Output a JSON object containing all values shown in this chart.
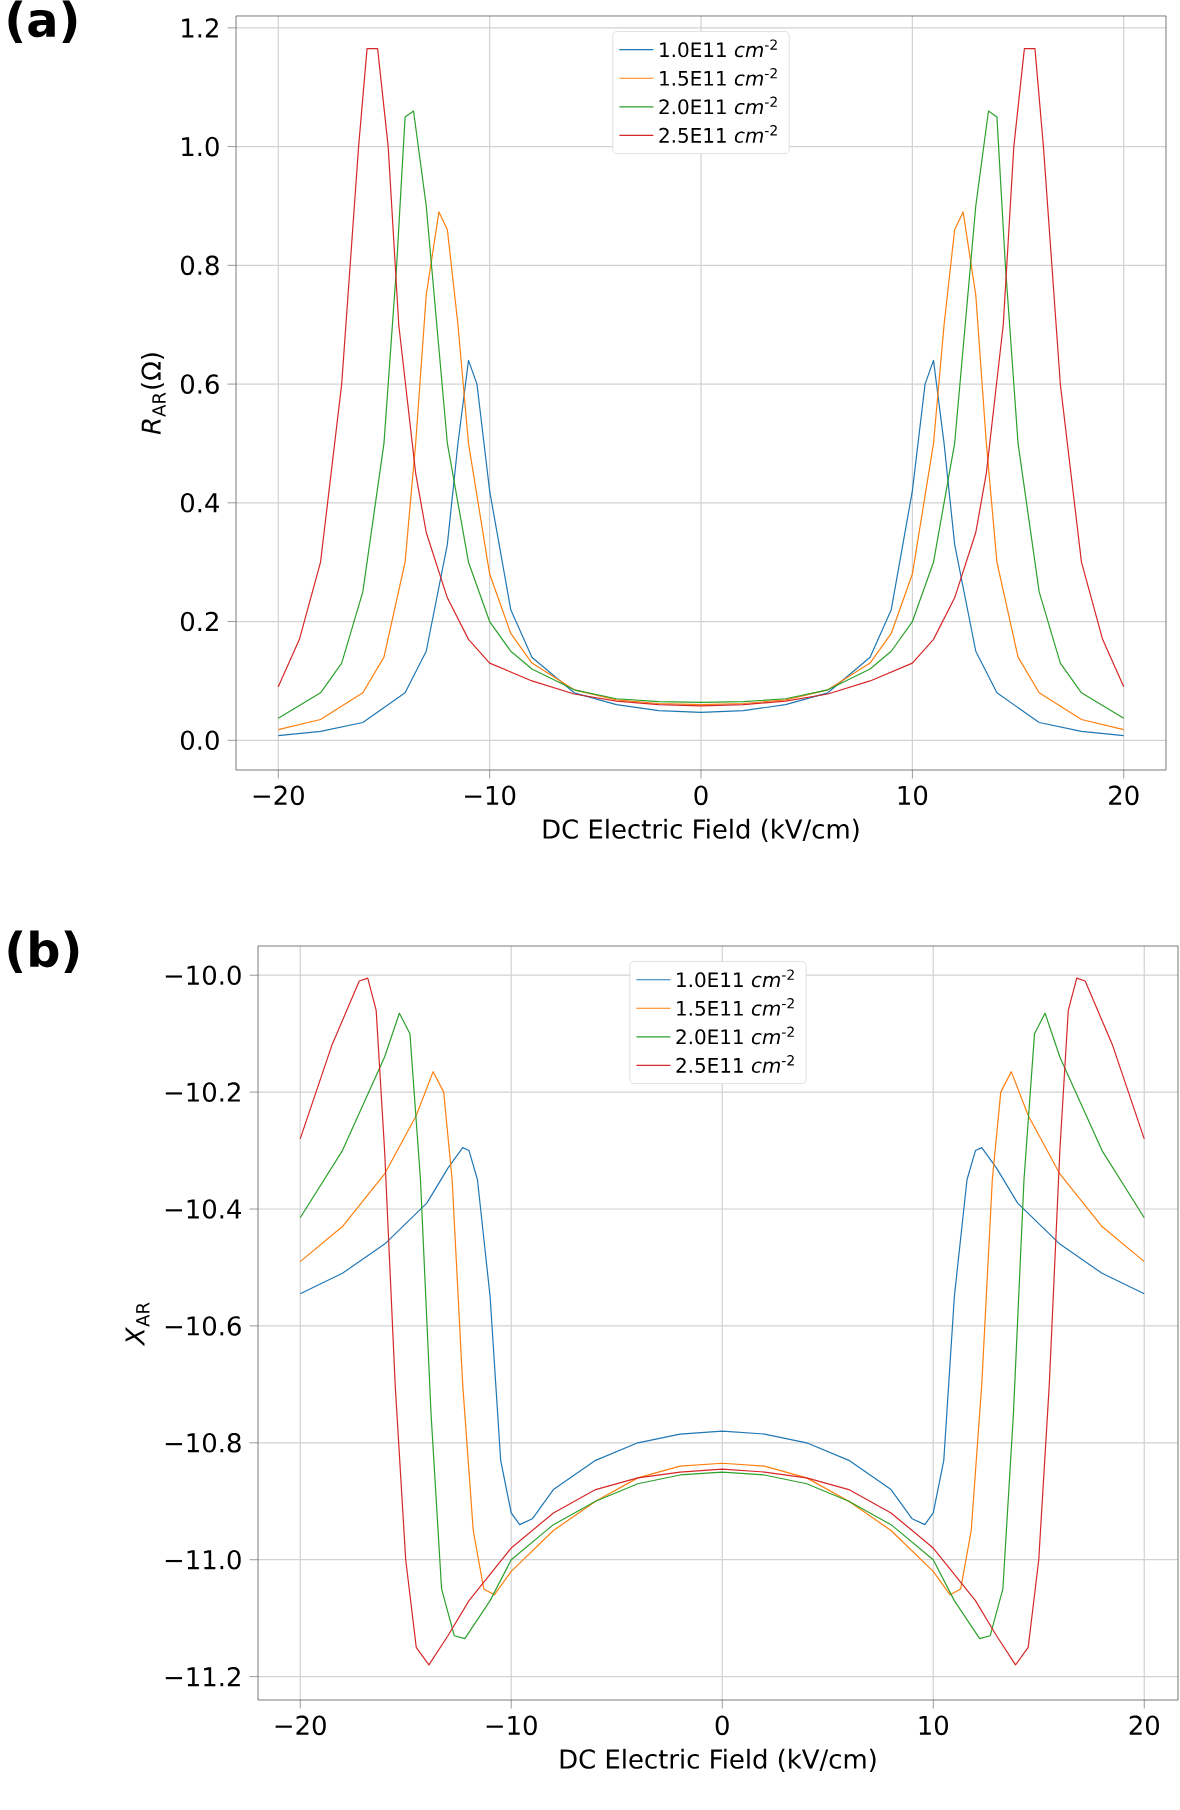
{
  "chart_data": [
    {
      "type": "line",
      "title": "**(a)**",
      "xlabel": "DC Electric Field (kV/cm)",
      "ylabel": "*R*$_{AR}$(Ω)",
      "grid": true,
      "legend": "top",
      "xlim": [
        -22,
        22
      ],
      "ylim": [
        -0.05,
        1.22
      ],
      "xticks": [
        {
          "value": -20,
          "label": "−20"
        },
        {
          "value": -10,
          "label": "−10"
        },
        {
          "value": 0,
          "label": "0"
        },
        {
          "value": 10,
          "label": "10"
        },
        {
          "value": 20,
          "label": "20"
        }
      ],
      "yticks": [
        {
          "value": 0,
          "label": "0.0"
        },
        {
          "value": 0.2,
          "label": "0.2"
        },
        {
          "value": 0.4,
          "label": "0.4"
        },
        {
          "value": 0.6,
          "label": "0.6"
        },
        {
          "value": 0.8,
          "label": "0.8"
        },
        {
          "value": 1.0,
          "label": "1.0"
        },
        {
          "value": 1.2,
          "label": "1.2"
        }
      ],
      "series": [
        {
          "name": "1.0E11 *cm*$^{-2}$",
          "color": "#1f77b4",
          "x": [
            -20,
            -18,
            -16,
            -14,
            -13,
            -12,
            -11.5,
            -11,
            -10.6,
            -10,
            -9,
            -8,
            -6,
            -4,
            -2,
            0,
            2,
            4,
            6,
            8,
            9,
            10,
            10.6,
            11,
            11.5,
            12,
            13,
            14,
            16,
            18,
            20
          ],
          "values": [
            0.008,
            0.015,
            0.03,
            0.08,
            0.15,
            0.33,
            0.5,
            0.64,
            0.6,
            0.42,
            0.22,
            0.14,
            0.08,
            0.06,
            0.05,
            0.047,
            0.05,
            0.06,
            0.08,
            0.14,
            0.22,
            0.42,
            0.6,
            0.64,
            0.5,
            0.33,
            0.15,
            0.08,
            0.03,
            0.015,
            0.008
          ]
        },
        {
          "name": "1.5E11 *cm*$^{-2}$",
          "color": "#ff7f0e",
          "x": [
            -20,
            -18,
            -16,
            -15,
            -14,
            -13.5,
            -13,
            -12.4,
            -12,
            -11.5,
            -11,
            -10,
            -9,
            -8,
            -6,
            -4,
            -2,
            0,
            2,
            4,
            6,
            8,
            9,
            10,
            11,
            11.5,
            12,
            12.4,
            13,
            13.5,
            14,
            15,
            16,
            18,
            20
          ],
          "values": [
            0.018,
            0.035,
            0.08,
            0.14,
            0.3,
            0.5,
            0.75,
            0.89,
            0.86,
            0.7,
            0.5,
            0.28,
            0.18,
            0.13,
            0.085,
            0.068,
            0.062,
            0.06,
            0.062,
            0.068,
            0.085,
            0.13,
            0.18,
            0.28,
            0.5,
            0.7,
            0.86,
            0.89,
            0.75,
            0.5,
            0.3,
            0.14,
            0.08,
            0.035,
            0.018
          ]
        },
        {
          "name": "2.0E11 *cm*$^{-2}$",
          "color": "#2ca02c",
          "x": [
            -20,
            -18,
            -17,
            -16,
            -15,
            -14.4,
            -14,
            -13.6,
            -13,
            -12.5,
            -12,
            -11,
            -10,
            -9,
            -8,
            -6,
            -4,
            -2,
            0,
            2,
            4,
            6,
            8,
            9,
            10,
            11,
            12,
            12.5,
            13,
            13.6,
            14,
            14.4,
            15,
            16,
            17,
            18,
            20
          ],
          "values": [
            0.037,
            0.08,
            0.13,
            0.25,
            0.5,
            0.8,
            1.05,
            1.06,
            0.9,
            0.7,
            0.5,
            0.3,
            0.2,
            0.15,
            0.12,
            0.085,
            0.07,
            0.065,
            0.064,
            0.065,
            0.07,
            0.085,
            0.12,
            0.15,
            0.2,
            0.3,
            0.5,
            0.7,
            0.9,
            1.06,
            1.05,
            0.8,
            0.5,
            0.25,
            0.13,
            0.08,
            0.037
          ]
        },
        {
          "name": "2.5E11 *cm*$^{-2}$",
          "color": "#d62728",
          "x": [
            -20,
            -19,
            -18,
            -17,
            -16.2,
            -15.8,
            -15.3,
            -14.8,
            -14.3,
            -13.5,
            -13,
            -12,
            -11,
            -10,
            -8,
            -6,
            -4,
            -2,
            0,
            2,
            4,
            6,
            8,
            10,
            11,
            12,
            13,
            13.5,
            14.3,
            14.8,
            15.3,
            15.8,
            16.2,
            17,
            18,
            19,
            20
          ],
          "values": [
            0.09,
            0.17,
            0.3,
            0.6,
            1.0,
            1.165,
            1.165,
            1.0,
            0.7,
            0.45,
            0.35,
            0.24,
            0.17,
            0.13,
            0.1,
            0.078,
            0.066,
            0.06,
            0.058,
            0.06,
            0.066,
            0.078,
            0.1,
            0.13,
            0.17,
            0.24,
            0.35,
            0.45,
            0.7,
            1.0,
            1.165,
            1.165,
            1.0,
            0.6,
            0.3,
            0.17,
            0.09
          ]
        }
      ]
    },
    {
      "type": "line",
      "title": "**(b)**",
      "xlabel": "DC Electric Field (kV/cm)",
      "ylabel": "*X*$_{AR}$",
      "grid": true,
      "legend": "top",
      "xlim": [
        -22,
        21.6
      ],
      "ylim": [
        -11.24,
        -9.95
      ],
      "xticks": [
        {
          "value": -20,
          "label": "−20"
        },
        {
          "value": -10,
          "label": "−10"
        },
        {
          "value": 0,
          "label": "0"
        },
        {
          "value": 10,
          "label": "10"
        },
        {
          "value": 20,
          "label": "20"
        }
      ],
      "yticks": [
        {
          "value": -11.2,
          "label": "−11.2"
        },
        {
          "value": -11.0,
          "label": "−11.0"
        },
        {
          "value": -10.8,
          "label": "−10.8"
        },
        {
          "value": -10.6,
          "label": "−10.6"
        },
        {
          "value": -10.4,
          "label": "−10.4"
        },
        {
          "value": -10.2,
          "label": "−10.2"
        },
        {
          "value": -10.0,
          "label": "−10.0"
        }
      ],
      "series": [
        {
          "name": "1.0E11 *cm*$^{-2}$",
          "color": "#1f77b4",
          "x": [
            -20,
            -18,
            -16,
            -14,
            -13,
            -12.3,
            -12,
            -11.6,
            -11,
            -10.5,
            -10,
            -9.6,
            -9,
            -8,
            -6,
            -4,
            -2,
            0,
            2,
            4,
            6,
            8,
            9,
            9.6,
            10,
            10.5,
            11,
            11.6,
            12,
            12.3,
            13,
            14,
            16,
            18,
            20
          ],
          "values": [
            -10.545,
            -10.51,
            -10.46,
            -10.39,
            -10.33,
            -10.295,
            -10.3,
            -10.35,
            -10.55,
            -10.83,
            -10.92,
            -10.94,
            -10.93,
            -10.88,
            -10.83,
            -10.8,
            -10.785,
            -10.78,
            -10.785,
            -10.8,
            -10.83,
            -10.88,
            -10.93,
            -10.94,
            -10.92,
            -10.83,
            -10.55,
            -10.35,
            -10.3,
            -10.295,
            -10.33,
            -10.39,
            -10.46,
            -10.51,
            -10.545
          ]
        },
        {
          "name": "1.5E11 *cm*$^{-2}$",
          "color": "#ff7f0e",
          "x": [
            -20,
            -18,
            -16,
            -14.5,
            -13.7,
            -13.2,
            -12.8,
            -12.3,
            -11.8,
            -11.3,
            -10.8,
            -10,
            -8,
            -6,
            -4,
            -2,
            0,
            2,
            4,
            6,
            8,
            10,
            10.8,
            11.3,
            11.8,
            12.3,
            12.8,
            13.2,
            13.7,
            14.5,
            16,
            18,
            20
          ],
          "values": [
            -10.49,
            -10.43,
            -10.34,
            -10.24,
            -10.165,
            -10.2,
            -10.35,
            -10.7,
            -10.95,
            -11.05,
            -11.06,
            -11.02,
            -10.95,
            -10.9,
            -10.86,
            -10.84,
            -10.835,
            -10.84,
            -10.86,
            -10.9,
            -10.95,
            -11.02,
            -11.06,
            -11.05,
            -10.95,
            -10.7,
            -10.35,
            -10.2,
            -10.165,
            -10.24,
            -10.34,
            -10.43,
            -10.49
          ]
        },
        {
          "name": "2.0E11 *cm*$^{-2}$",
          "color": "#2ca02c",
          "x": [
            -20,
            -18,
            -16,
            -15.3,
            -14.8,
            -14.3,
            -13.8,
            -13.3,
            -12.7,
            -12.2,
            -11,
            -10,
            -8,
            -6,
            -4,
            -2,
            0,
            2,
            4,
            6,
            8,
            10,
            11,
            12.2,
            12.7,
            13.3,
            13.8,
            14.3,
            14.8,
            15.3,
            16,
            18,
            20
          ],
          "values": [
            -10.415,
            -10.3,
            -10.14,
            -10.065,
            -10.1,
            -10.35,
            -10.75,
            -11.05,
            -11.13,
            -11.135,
            -11.07,
            -11.0,
            -10.94,
            -10.9,
            -10.87,
            -10.855,
            -10.85,
            -10.855,
            -10.87,
            -10.9,
            -10.94,
            -11.0,
            -11.07,
            -11.135,
            -11.13,
            -11.05,
            -10.75,
            -10.35,
            -10.1,
            -10.065,
            -10.14,
            -10.3,
            -10.415
          ]
        },
        {
          "name": "2.5E11 *cm*$^{-2}$",
          "color": "#d62728",
          "x": [
            -20,
            -18.5,
            -17.2,
            -16.8,
            -16.4,
            -16,
            -15.5,
            -15,
            -14.5,
            -13.9,
            -13,
            -12,
            -10,
            -8,
            -6,
            -4,
            -2,
            0,
            2,
            4,
            6,
            8,
            10,
            12,
            13,
            13.9,
            14.5,
            15,
            15.5,
            16,
            16.4,
            16.8,
            17.2,
            18.5,
            20
          ],
          "values": [
            -10.28,
            -10.12,
            -10.01,
            -10.005,
            -10.06,
            -10.3,
            -10.7,
            -11.0,
            -11.15,
            -11.18,
            -11.13,
            -11.07,
            -10.98,
            -10.92,
            -10.88,
            -10.86,
            -10.85,
            -10.845,
            -10.85,
            -10.86,
            -10.88,
            -10.92,
            -10.98,
            -11.07,
            -11.13,
            -11.18,
            -11.15,
            -11.0,
            -10.7,
            -10.3,
            -10.06,
            -10.005,
            -10.01,
            -10.12,
            -10.28
          ]
        }
      ]
    }
  ]
}
